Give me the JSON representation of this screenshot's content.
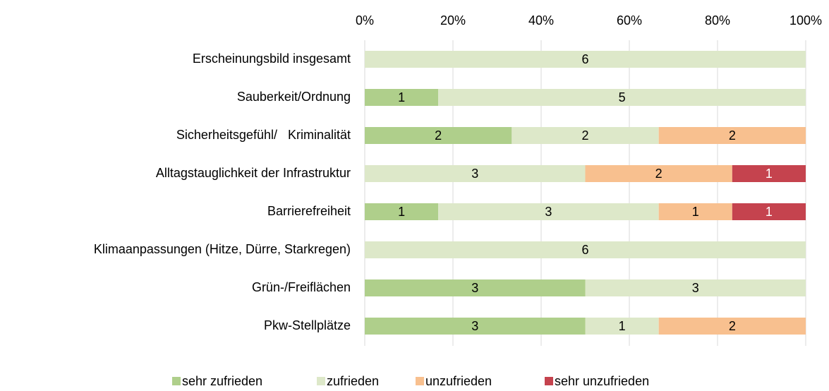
{
  "chart_data": {
    "type": "bar",
    "orientation": "horizontal",
    "stacking": "percent",
    "categories": [
      "Erscheinungsbild insgesamt",
      "Sauberkeit/Ordnung",
      "Sicherheitsgefühl/   Kriminalität",
      "Alltagstauglichkeit der Infrastruktur",
      "Barrierefreiheit",
      "Klimaanpassungen (Hitze, Dürre, Starkregen)",
      "Grün-/Freiflächen",
      "Pkw-Stellplätze"
    ],
    "series": [
      {
        "name": "sehr zufrieden",
        "color": "#afcf8b",
        "values": [
          0,
          1,
          2,
          0,
          1,
          0,
          3,
          3
        ]
      },
      {
        "name": "zufrieden",
        "color": "#dde8c9",
        "values": [
          6,
          5,
          2,
          3,
          3,
          6,
          3,
          1
        ]
      },
      {
        "name": "unzufrieden",
        "color": "#f8c08f",
        "values": [
          0,
          0,
          2,
          2,
          1,
          0,
          0,
          2
        ]
      },
      {
        "name": "sehr unzufrieden",
        "color": "#c5434e",
        "values": [
          0,
          0,
          0,
          1,
          1,
          0,
          0,
          0
        ]
      }
    ],
    "xlim": [
      0,
      100
    ],
    "xticks": [
      {
        "value": 0,
        "label": "0%"
      },
      {
        "value": 20,
        "label": "20%"
      },
      {
        "value": 40,
        "label": "40%"
      },
      {
        "value": 60,
        "label": "60%"
      },
      {
        "value": 80,
        "label": "80%"
      },
      {
        "value": 100,
        "label": "100%"
      }
    ],
    "grid": true,
    "legend": "bottom"
  }
}
